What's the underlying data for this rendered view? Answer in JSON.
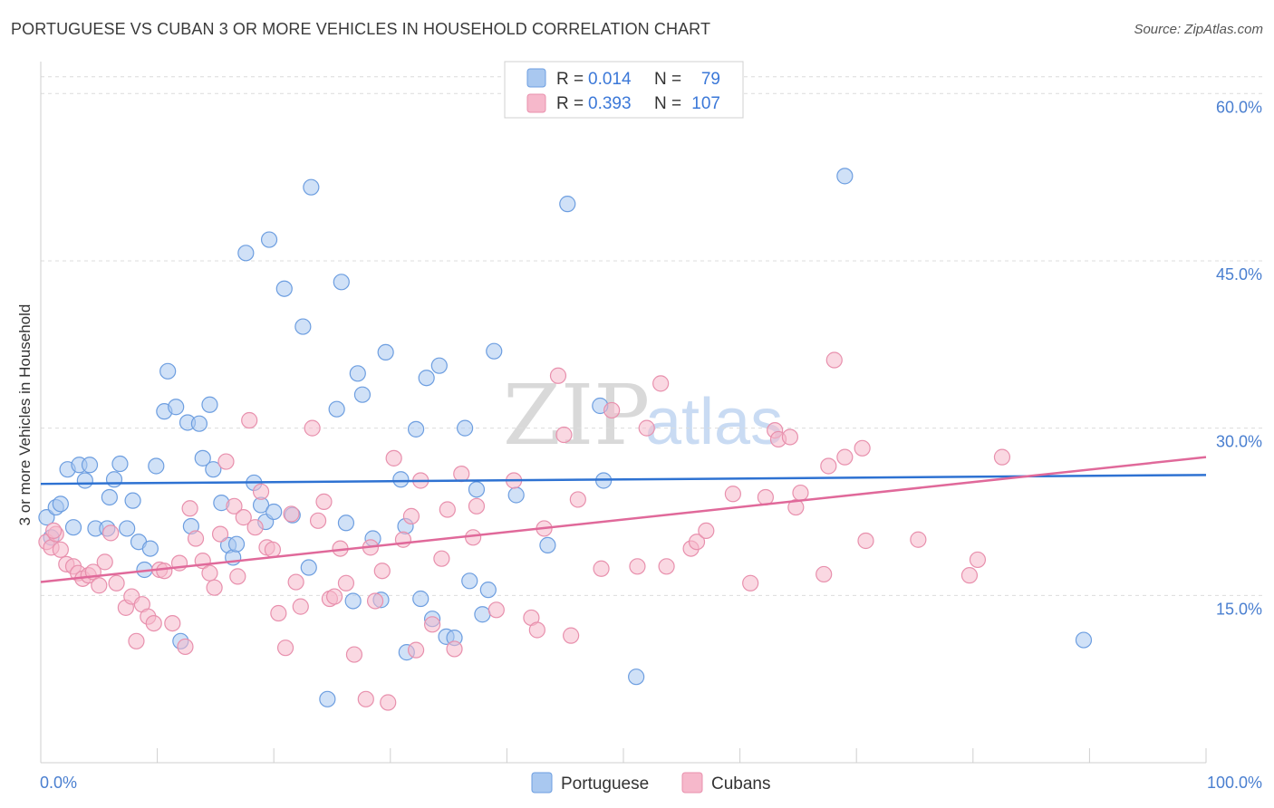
{
  "title": "PORTUGUESE VS CUBAN 3 OR MORE VEHICLES IN HOUSEHOLD CORRELATION CHART",
  "source": "Source: ZipAtlas.com",
  "colors": {
    "portuguese_fill": "#a9c8f0",
    "portuguese_stroke": "#6d9ee0",
    "portuguese_line": "#2e72d2",
    "cubans_fill": "#f6b8cb",
    "cubans_stroke": "#e890ad",
    "cubans_line": "#e0699a",
    "grid": "#dcdcdc",
    "tick_text": "#4a7fd0"
  },
  "legend": {
    "r_label": "R =",
    "n_label": "N =",
    "portuguese": {
      "r": "0.014",
      "n": "79"
    },
    "cubans": {
      "r": "0.393",
      "n": "107"
    }
  },
  "watermark": {
    "zip": "ZIP",
    "atlas": "atlas"
  },
  "chart_data": {
    "type": "scatter",
    "title": "PORTUGUESE VS CUBAN 3 OR MORE VEHICLES IN HOUSEHOLD CORRELATION CHART",
    "xlabel": "",
    "ylabel": "3 or more Vehicles in Household",
    "xlim": [
      0,
      100
    ],
    "ylim": [
      0,
      64
    ],
    "x_tick_labels": [
      "0.0%",
      "100.0%"
    ],
    "y_ticks": [
      15,
      30,
      45,
      60
    ],
    "y_tick_labels": [
      "15.0%",
      "30.0%",
      "45.0%",
      "60.0%"
    ],
    "legend_position": "top-center",
    "series": [
      {
        "name": "Portuguese",
        "trend": {
          "x": [
            0,
            100
          ],
          "y": [
            25.0,
            25.8
          ]
        },
        "points": [
          [
            0.5,
            22.0
          ],
          [
            0.9,
            20.2
          ],
          [
            1.3,
            22.9
          ],
          [
            1.7,
            23.2
          ],
          [
            2.3,
            26.3
          ],
          [
            2.8,
            21.1
          ],
          [
            3.3,
            26.7
          ],
          [
            3.8,
            25.3
          ],
          [
            4.2,
            26.7
          ],
          [
            4.7,
            21.0
          ],
          [
            5.7,
            21.0
          ],
          [
            5.9,
            23.8
          ],
          [
            6.3,
            25.4
          ],
          [
            6.8,
            26.8
          ],
          [
            7.4,
            21.0
          ],
          [
            7.9,
            23.5
          ],
          [
            8.4,
            19.8
          ],
          [
            8.9,
            17.3
          ],
          [
            9.4,
            19.2
          ],
          [
            9.9,
            26.6
          ],
          [
            10.6,
            31.5
          ],
          [
            10.9,
            35.1
          ],
          [
            11.6,
            31.9
          ],
          [
            12.0,
            10.9
          ],
          [
            12.6,
            30.5
          ],
          [
            12.9,
            21.2
          ],
          [
            13.6,
            30.4
          ],
          [
            13.9,
            27.3
          ],
          [
            14.5,
            32.1
          ],
          [
            14.8,
            26.3
          ],
          [
            15.5,
            23.3
          ],
          [
            16.1,
            19.5
          ],
          [
            16.5,
            18.4
          ],
          [
            16.8,
            19.6
          ],
          [
            17.6,
            45.7
          ],
          [
            18.3,
            25.1
          ],
          [
            18.9,
            23.1
          ],
          [
            19.3,
            21.6
          ],
          [
            19.6,
            46.9
          ],
          [
            20.0,
            22.5
          ],
          [
            20.9,
            42.5
          ],
          [
            21.6,
            22.2
          ],
          [
            22.5,
            39.1
          ],
          [
            23.0,
            17.5
          ],
          [
            23.2,
            51.6
          ],
          [
            24.6,
            5.7
          ],
          [
            25.4,
            31.7
          ],
          [
            25.8,
            43.1
          ],
          [
            26.2,
            21.5
          ],
          [
            26.8,
            14.5
          ],
          [
            27.2,
            34.9
          ],
          [
            27.6,
            33.0
          ],
          [
            28.5,
            20.1
          ],
          [
            29.2,
            14.6
          ],
          [
            29.6,
            36.8
          ],
          [
            30.9,
            25.4
          ],
          [
            31.4,
            9.9
          ],
          [
            31.3,
            21.2
          ],
          [
            32.2,
            29.9
          ],
          [
            32.6,
            14.7
          ],
          [
            33.1,
            34.5
          ],
          [
            33.6,
            12.9
          ],
          [
            34.2,
            35.6
          ],
          [
            34.8,
            11.3
          ],
          [
            35.5,
            11.2
          ],
          [
            36.4,
            30.0
          ],
          [
            36.8,
            16.3
          ],
          [
            37.4,
            24.5
          ],
          [
            37.9,
            13.3
          ],
          [
            38.4,
            15.5
          ],
          [
            38.9,
            36.9
          ],
          [
            40.8,
            24.0
          ],
          [
            43.5,
            19.5
          ],
          [
            45.2,
            50.1
          ],
          [
            48.0,
            32.0
          ],
          [
            48.3,
            25.3
          ],
          [
            51.1,
            7.7
          ],
          [
            69.0,
            52.6
          ],
          [
            89.5,
            11.0
          ]
        ]
      },
      {
        "name": "Cubans",
        "trend": {
          "x": [
            0,
            100
          ],
          "y": [
            16.2,
            27.4
          ]
        },
        "points": [
          [
            0.5,
            19.8
          ],
          [
            0.9,
            19.3
          ],
          [
            1.3,
            20.5
          ],
          [
            1.7,
            19.1
          ],
          [
            2.2,
            17.8
          ],
          [
            2.8,
            17.6
          ],
          [
            3.2,
            17.0
          ],
          [
            3.6,
            16.5
          ],
          [
            4.1,
            16.8
          ],
          [
            4.5,
            17.1
          ],
          [
            5.0,
            15.9
          ],
          [
            5.5,
            18.0
          ],
          [
            6.0,
            20.6
          ],
          [
            6.5,
            16.1
          ],
          [
            7.3,
            13.9
          ],
          [
            7.8,
            14.9
          ],
          [
            8.2,
            10.9
          ],
          [
            8.7,
            14.2
          ],
          [
            9.2,
            13.1
          ],
          [
            9.7,
            12.5
          ],
          [
            10.2,
            17.3
          ],
          [
            10.6,
            17.2
          ],
          [
            11.3,
            12.5
          ],
          [
            11.9,
            17.9
          ],
          [
            12.4,
            10.4
          ],
          [
            12.8,
            22.8
          ],
          [
            13.3,
            20.1
          ],
          [
            13.9,
            18.1
          ],
          [
            14.5,
            17.0
          ],
          [
            14.9,
            15.7
          ],
          [
            15.4,
            20.5
          ],
          [
            15.9,
            27.0
          ],
          [
            16.6,
            23.0
          ],
          [
            16.9,
            16.7
          ],
          [
            17.4,
            22.0
          ],
          [
            17.9,
            30.7
          ],
          [
            18.4,
            21.1
          ],
          [
            18.9,
            24.3
          ],
          [
            19.4,
            19.3
          ],
          [
            19.9,
            19.1
          ],
          [
            20.4,
            13.4
          ],
          [
            21.0,
            10.3
          ],
          [
            21.5,
            22.3
          ],
          [
            21.9,
            16.2
          ],
          [
            22.3,
            14.0
          ],
          [
            23.3,
            30.0
          ],
          [
            23.8,
            21.7
          ],
          [
            24.3,
            23.4
          ],
          [
            24.8,
            14.7
          ],
          [
            25.2,
            14.9
          ],
          [
            25.7,
            19.2
          ],
          [
            26.2,
            16.1
          ],
          [
            26.9,
            9.7
          ],
          [
            27.9,
            5.7
          ],
          [
            28.3,
            19.3
          ],
          [
            28.7,
            14.5
          ],
          [
            29.3,
            17.2
          ],
          [
            29.8,
            5.4
          ],
          [
            30.3,
            27.3
          ],
          [
            31.1,
            20.0
          ],
          [
            31.8,
            22.1
          ],
          [
            32.2,
            10.1
          ],
          [
            32.6,
            25.3
          ],
          [
            33.6,
            12.4
          ],
          [
            34.4,
            18.3
          ],
          [
            34.9,
            22.7
          ],
          [
            35.5,
            10.2
          ],
          [
            36.1,
            25.9
          ],
          [
            37.1,
            20.2
          ],
          [
            37.4,
            23.0
          ],
          [
            39.1,
            13.7
          ],
          [
            40.6,
            25.3
          ],
          [
            42.1,
            13.0
          ],
          [
            42.6,
            11.9
          ],
          [
            43.2,
            21.0
          ],
          [
            44.4,
            34.7
          ],
          [
            44.9,
            29.4
          ],
          [
            45.5,
            11.4
          ],
          [
            46.1,
            23.6
          ],
          [
            48.1,
            17.4
          ],
          [
            49.0,
            31.6
          ],
          [
            51.2,
            17.6
          ],
          [
            52.0,
            30.0
          ],
          [
            53.2,
            34.0
          ],
          [
            53.7,
            17.6
          ],
          [
            55.8,
            19.2
          ],
          [
            56.3,
            19.8
          ],
          [
            57.1,
            20.8
          ],
          [
            59.4,
            24.1
          ],
          [
            60.9,
            16.1
          ],
          [
            62.2,
            23.8
          ],
          [
            63.0,
            29.8
          ],
          [
            63.3,
            29.0
          ],
          [
            64.3,
            29.2
          ],
          [
            64.8,
            22.9
          ],
          [
            65.2,
            24.2
          ],
          [
            67.2,
            16.9
          ],
          [
            67.6,
            26.6
          ],
          [
            68.1,
            36.1
          ],
          [
            69.0,
            27.4
          ],
          [
            70.5,
            28.2
          ],
          [
            70.8,
            19.9
          ],
          [
            75.3,
            20.0
          ],
          [
            79.7,
            16.8
          ],
          [
            80.4,
            18.2
          ],
          [
            82.5,
            27.4
          ],
          [
            1.1,
            20.8
          ]
        ]
      }
    ]
  },
  "bottom_legend": {
    "portuguese": "Portuguese",
    "cubans": "Cubans"
  }
}
